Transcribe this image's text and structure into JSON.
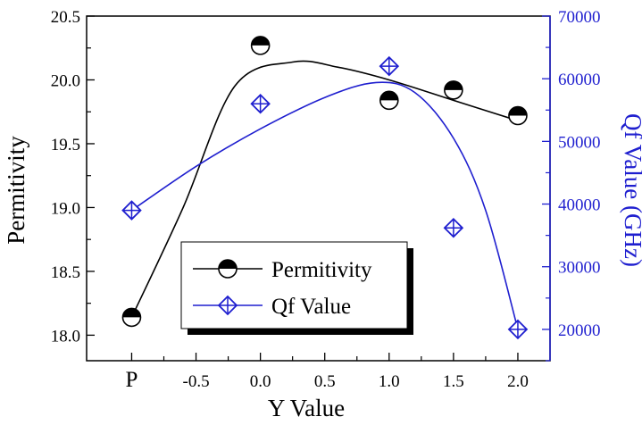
{
  "chart_data": {
    "type": "scatter",
    "x_ticks": [
      {
        "label": "P",
        "x": -1.0
      },
      {
        "label": "-0.5",
        "x": -0.5
      },
      {
        "label": "0.0",
        "x": 0.0
      },
      {
        "label": "0.5",
        "x": 0.5
      },
      {
        "label": "1.0",
        "x": 1.0
      },
      {
        "label": "1.5",
        "x": 1.5
      },
      {
        "label": "2.0",
        "x": 2.0
      }
    ],
    "xlim": [
      -1.35,
      2.25
    ],
    "xlabel": "Y Value",
    "y_left": {
      "label": "Permitivity",
      "ylim": [
        17.8,
        20.5
      ],
      "ticks": [
        "18.0",
        "18.5",
        "19.0",
        "19.5",
        "20.0",
        "20.5"
      ],
      "color": "#000000"
    },
    "y_right": {
      "label": "Qf Value (GHz)",
      "ylim": [
        15000,
        70000
      ],
      "ticks": [
        "20000",
        "30000",
        "40000",
        "50000",
        "60000",
        "70000"
      ],
      "color": "#1f1fcf"
    },
    "series": [
      {
        "name": "Permitivity",
        "axis": "left",
        "marker": "half-filled-circle",
        "color": "#000000",
        "x": [
          -1.0,
          0.0,
          1.0,
          1.5,
          2.0
        ],
        "y": [
          18.14,
          20.27,
          19.84,
          19.92,
          19.72
        ],
        "fit_curve": [
          [
            -1.0,
            18.14
          ],
          [
            -0.6,
            19.0
          ],
          [
            -0.2,
            19.95
          ],
          [
            0.25,
            20.14
          ],
          [
            0.6,
            20.1
          ],
          [
            1.0,
            20.0
          ],
          [
            1.5,
            19.84
          ],
          [
            2.0,
            19.68
          ]
        ]
      },
      {
        "name": "Qf Value",
        "axis": "right",
        "marker": "crossed-diamond",
        "color": "#1f1fcf",
        "x": [
          -1.0,
          0.0,
          1.0,
          1.5,
          2.0
        ],
        "y": [
          39000,
          56000,
          62000,
          36200,
          20000
        ],
        "fit_curve": [
          [
            -1.0,
            39000
          ],
          [
            -0.5,
            46000
          ],
          [
            0.0,
            52000
          ],
          [
            0.5,
            57000
          ],
          [
            0.9,
            59400
          ],
          [
            1.2,
            57800
          ],
          [
            1.5,
            50500
          ],
          [
            1.75,
            39000
          ],
          [
            2.0,
            20000
          ]
        ]
      }
    ],
    "legend": {
      "placement": "center-left",
      "entries": [
        "Permitivity",
        "Qf Value"
      ]
    },
    "grid": false
  }
}
